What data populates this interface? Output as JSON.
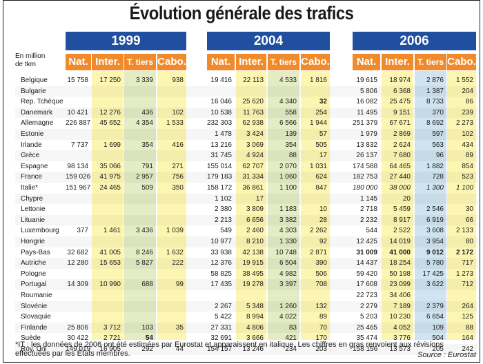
{
  "title": "Évolution générale des trafics",
  "unit_label": [
    "En million",
    "de tkm"
  ],
  "years": [
    "1999",
    "2004",
    "2006"
  ],
  "column_headers": [
    "Nat.",
    "Inter.",
    "T. tiers",
    "Cabo."
  ],
  "colors": {
    "year_band": "#1f4f9e",
    "header": "#f08a2a",
    "yellow": "#fdf6b2",
    "green": "#e3ecc4",
    "blue": "#cfe3f0"
  },
  "rows": [
    {
      "country": "Belgique",
      "v": [
        "15 758",
        "17 250",
        "3 339",
        "938",
        "19 416",
        "22 113",
        "4 533",
        "1 816",
        "19 615",
        "18 974",
        "2 876",
        "1 552"
      ]
    },
    {
      "country": "Bulgarie",
      "v": [
        "",
        "",
        "",
        "",
        "",
        "",
        "",
        "",
        "5 806",
        "6 368",
        "1 387",
        "204"
      ]
    },
    {
      "country": "Rep. Tchèque",
      "v": [
        "",
        "",
        "",
        "",
        "16 046",
        "25 620",
        "4 340",
        "32",
        "16 082",
        "25 475",
        "8 733",
        "86"
      ]
    },
    {
      "country": "Danemark",
      "v": [
        "10 421",
        "12 276",
        "436",
        "102",
        "10 538",
        "11 763",
        "558",
        "254",
        "11 495",
        "9 151",
        "370",
        "239"
      ]
    },
    {
      "country": "Allemagne",
      "v": [
        "226 887",
        "45 652",
        "4 354",
        "1 533",
        "232 303",
        "62 938",
        "6 566",
        "1 944",
        "251 379",
        "67 671",
        "8 692",
        "2 273"
      ]
    },
    {
      "country": "Estonie",
      "v": [
        "",
        "",
        "",
        "",
        "1 478",
        "3 424",
        "139",
        "57",
        "1 979",
        "2 869",
        "597",
        "102"
      ]
    },
    {
      "country": "Irlande",
      "v": [
        "7 737",
        "1 699",
        "354",
        "416",
        "13 216",
        "3 069",
        "354",
        "505",
        "13 832",
        "2 624",
        "563",
        "434"
      ]
    },
    {
      "country": "Grèce",
      "v": [
        "",
        "",
        "",
        "",
        "31 745",
        "4 924",
        "88",
        "17",
        "26 137",
        "7 680",
        "96",
        "89"
      ]
    },
    {
      "country": "Espagne",
      "v": [
        "98 134",
        "35 066",
        "791",
        "271",
        "155 014",
        "62 707",
        "2 070",
        "1 031",
        "174 588",
        "64 465",
        "1 882",
        "854"
      ]
    },
    {
      "country": "France",
      "v": [
        "159 026",
        "41 975",
        "2 957",
        "756",
        "179 183",
        "31 334",
        "1 060",
        "624",
        "182 753",
        "27 440",
        "728",
        "523"
      ]
    },
    {
      "country": "Italie*",
      "v": [
        "151 967",
        "24 465",
        "509",
        "350",
        "158 172",
        "36 861",
        "1 100",
        "847",
        "180 000",
        "38 000",
        "1 300",
        "1 100"
      ]
    },
    {
      "country": "Chypre",
      "v": [
        "",
        "",
        "",
        "",
        "1 102",
        "17",
        "",
        "",
        "1 145",
        "20",
        "",
        ""
      ]
    },
    {
      "country": "Lettonie",
      "v": [
        "",
        "",
        "",
        "",
        "2 380",
        "3 809",
        "1 183",
        "10",
        "2 718",
        "5 459",
        "2 546",
        "30"
      ]
    },
    {
      "country": "Lituanie",
      "v": [
        "",
        "",
        "",
        "",
        "2 213",
        "6 656",
        "3 382",
        "28",
        "2 232",
        "8 917",
        "6 919",
        "66"
      ]
    },
    {
      "country": "Luxembourg",
      "v": [
        "377",
        "1 461",
        "3 436",
        "1 039",
        "549",
        "2 460",
        "4 303",
        "2 262",
        "544",
        "2 522",
        "3 608",
        "2 133"
      ]
    },
    {
      "country": "Hongrie",
      "v": [
        "",
        "",
        "",
        "",
        "10 977",
        "8 210",
        "1 330",
        "92",
        "12 425",
        "14 019",
        "3 954",
        "80"
      ]
    },
    {
      "country": "Pays-Bas",
      "v": [
        "32 682",
        "41 005",
        "8 246",
        "1 632",
        "33 938",
        "42 138",
        "10 748",
        "2 871",
        "31 009",
        "41 000",
        "9 012",
        "2 172"
      ]
    },
    {
      "country": "Autriche",
      "v": [
        "12 280",
        "15 653",
        "5 827",
        "222",
        "12 376",
        "19 915",
        "6 504",
        "390",
        "14 437",
        "18 254",
        "5 780",
        "717"
      ]
    },
    {
      "country": "Pologne",
      "v": [
        "",
        "",
        "",
        "",
        "58 825",
        "38 495",
        "4 982",
        "506",
        "59 420",
        "50 198",
        "17 425",
        "1 273"
      ]
    },
    {
      "country": "Portugal",
      "v": [
        "14 309",
        "10 990",
        "688",
        "99",
        "17 435",
        "19 278",
        "3 397",
        "708",
        "17 608",
        "23 099",
        "3 622",
        "712"
      ]
    },
    {
      "country": "Roumanie",
      "v": [
        "",
        "",
        "",
        "",
        "",
        "",
        "",
        "",
        "22 723",
        "34 406",
        "",
        ""
      ]
    },
    {
      "country": "Slovénie",
      "v": [
        "",
        "",
        "",
        "",
        "2 267",
        "5 348",
        "1 260",
        "132",
        "2 279",
        "7 189",
        "2 379",
        "264"
      ]
    },
    {
      "country": "Slovaquie",
      "v": [
        "",
        "",
        "",
        "",
        "5 422",
        "8 994",
        "4 022",
        "89",
        "5 203",
        "10 230",
        "6 654",
        "125"
      ]
    },
    {
      "country": "Finlande",
      "v": [
        "25 806",
        "3 712",
        "103",
        "35",
        "27 331",
        "4 806",
        "83",
        "70",
        "25 465",
        "4 052",
        "109",
        "88"
      ]
    },
    {
      "country": "Suède",
      "v": [
        "30 422",
        "2 721",
        "54",
        "",
        "32 691",
        "3 666",
        "421",
        "170",
        "35 474",
        "3 776",
        "504",
        "164"
      ]
    },
    {
      "country": "Roy. Uni",
      "v": [
        "149 019",
        "16 905",
        "292",
        "44",
        "154 157",
        "13 246",
        "234",
        "203",
        "158 156",
        "13 573",
        "205",
        "242"
      ]
    }
  ],
  "footnote": "*IT : les données de 2006 ont été estimées par Eurostat et apparaissent en italique. Les chiffres en gras renvoient aux révisions effectuées par les États membres.",
  "source": "Source : Eurostat"
}
